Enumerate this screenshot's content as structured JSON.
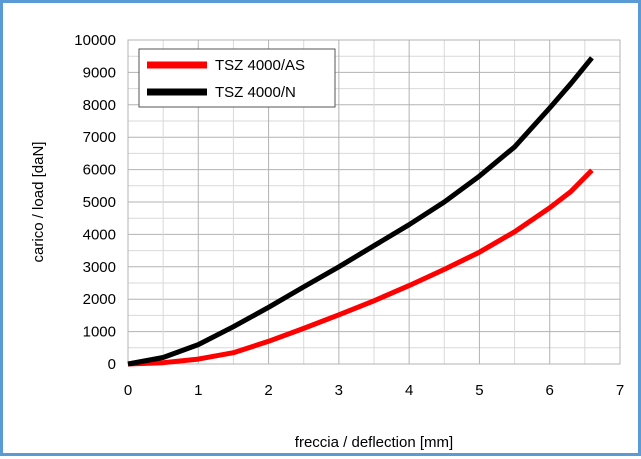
{
  "chart_data": {
    "type": "line",
    "xlabel": "freccia / deflection [mm]",
    "ylabel": "carico / load [daN]",
    "xlim": [
      0,
      7
    ],
    "ylim": [
      0,
      10000
    ],
    "x_ticks": [
      "0",
      "1",
      "2",
      "3",
      "4",
      "5",
      "6",
      "7"
    ],
    "y_ticks": [
      "0",
      "1000",
      "2000",
      "3000",
      "4000",
      "5000",
      "6000",
      "7000",
      "8000",
      "9000",
      "10000"
    ],
    "grid": true,
    "legend_position": "top-left",
    "series": [
      {
        "name": "TSZ 4000/AS",
        "color": "#ff0000",
        "x": [
          0,
          0.5,
          1.0,
          1.5,
          2.0,
          2.5,
          3.0,
          3.5,
          4.0,
          4.5,
          5.0,
          5.5,
          6.0,
          6.3,
          6.6
        ],
        "y": [
          0,
          40,
          150,
          350,
          700,
          1100,
          1520,
          1950,
          2420,
          2920,
          3450,
          4080,
          4820,
          5320,
          5980
        ]
      },
      {
        "name": "TSZ 4000/N",
        "color": "#000000",
        "x": [
          0,
          0.5,
          1.0,
          1.5,
          2.0,
          2.5,
          3.0,
          3.5,
          4.0,
          4.5,
          5.0,
          5.5,
          6.0,
          6.3,
          6.6
        ],
        "y": [
          0,
          200,
          600,
          1150,
          1750,
          2380,
          3000,
          3650,
          4300,
          5000,
          5800,
          6700,
          7900,
          8650,
          9450
        ]
      }
    ]
  }
}
